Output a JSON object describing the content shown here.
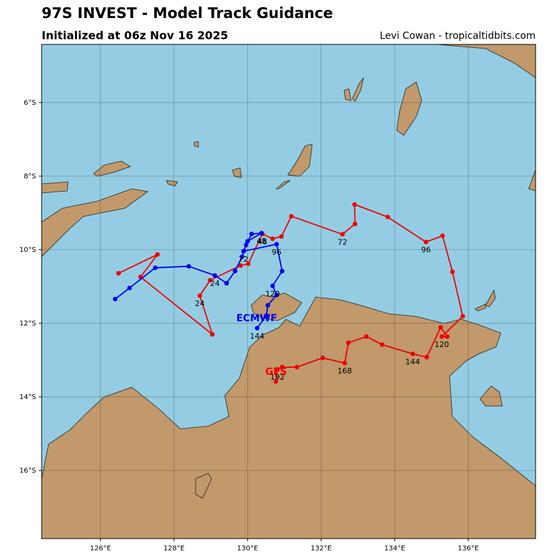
{
  "chart_data": {
    "type": "track",
    "title": "97S INVEST - Model Track Guidance",
    "subtitle": "Initialized at 06z Nov 16 2025",
    "credit": "Levi Cowan - tropicaltidbits.com",
    "xlim": [
      124.4,
      137.83
    ],
    "ylim": [
      -17.85,
      -4.42
    ],
    "xticks": [
      {
        "value": 126,
        "label": "126°E"
      },
      {
        "value": 128,
        "label": "128°E"
      },
      {
        "value": 130,
        "label": "130°E"
      },
      {
        "value": 132,
        "label": "132°E"
      },
      {
        "value": 134,
        "label": "134°E"
      },
      {
        "value": 136,
        "label": "136°E"
      }
    ],
    "yticks": [
      {
        "value": -6,
        "label": "6°S"
      },
      {
        "value": -8,
        "label": "8°S"
      },
      {
        "value": -10,
        "label": "10°S"
      },
      {
        "value": -12,
        "label": "12°S"
      },
      {
        "value": -14,
        "label": "14°S"
      },
      {
        "value": -16,
        "label": "16°S"
      }
    ],
    "grid": true,
    "series": [
      {
        "name": "GFS",
        "color": "#ee0000",
        "x": [
          126.49,
          127.55,
          127.09,
          129.04,
          128.7,
          128.98,
          129.81,
          130.02,
          130.4,
          130.68,
          130.92,
          131.19,
          132.58,
          132.92,
          132.91,
          133.81,
          134.85,
          135.3,
          135.57,
          135.85,
          135.28,
          135.43,
          135.25,
          134.87,
          134.49,
          133.66,
          133.23,
          132.74,
          132.64,
          132.04,
          131.34,
          130.94,
          130.81,
          130.77
        ],
        "values": [
          -10.64,
          -10.13,
          -10.74,
          -12.3,
          -11.25,
          -10.83,
          -10.43,
          -10.38,
          -9.57,
          -9.7,
          -9.64,
          -9.09,
          -9.58,
          -9.3,
          -8.77,
          -9.11,
          -9.79,
          -9.62,
          -10.6,
          -11.81,
          -12.36,
          -12.36,
          -12.11,
          -12.92,
          -12.83,
          -12.58,
          -12.36,
          -12.53,
          -13.08,
          -12.94,
          -13.19,
          -13.19,
          -13.25,
          -13.58
        ],
        "point_labels": [
          null,
          null,
          null,
          null,
          24,
          null,
          null,
          null,
          48,
          null,
          null,
          null,
          72,
          null,
          null,
          null,
          96,
          null,
          null,
          null,
          120,
          null,
          null,
          null,
          144,
          null,
          null,
          null,
          168,
          null,
          null,
          null,
          192,
          null
        ]
      },
      {
        "name": "ECMWF",
        "color": "#0000ee",
        "x": [
          126.4,
          126.79,
          127.49,
          128.4,
          129.11,
          129.43,
          129.66,
          129.85,
          129.96,
          130.11,
          130.38,
          130.0,
          129.89,
          130.79,
          130.94,
          130.68,
          130.79,
          130.55,
          130.51,
          130.26
        ],
        "values": [
          -11.34,
          -11.04,
          -10.49,
          -10.45,
          -10.7,
          -10.91,
          -10.58,
          -10.19,
          -9.87,
          -9.57,
          -9.55,
          -9.77,
          -10.04,
          -9.85,
          -10.58,
          -10.98,
          -11.23,
          -11.51,
          -11.79,
          -12.13
        ],
        "point_labels": [
          null,
          null,
          null,
          null,
          24,
          null,
          null,
          null,
          null,
          null,
          48,
          null,
          72,
          96,
          null,
          120,
          null,
          null,
          null,
          144
        ]
      }
    ]
  }
}
